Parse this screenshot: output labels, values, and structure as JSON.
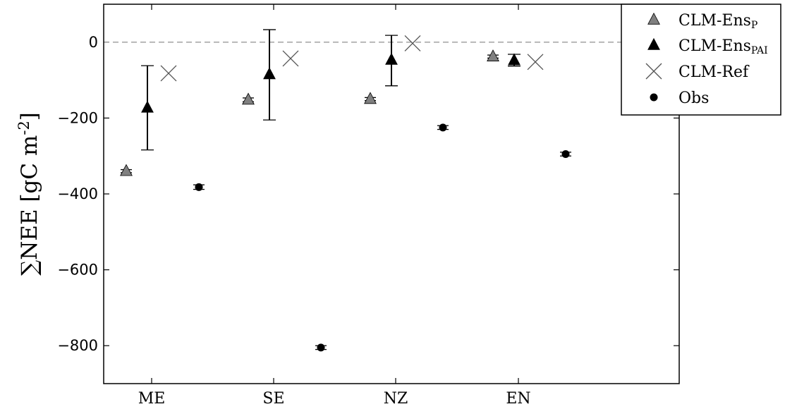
{
  "chart_data": {
    "type": "scatter",
    "categories": [
      "ME",
      "SE",
      "NZ",
      "EN"
    ],
    "ylabel": {
      "prefix": "∑NEE [gC m",
      "sup": "-2",
      "suffix": "]"
    },
    "ylim": [
      -900,
      100
    ],
    "yticks": [
      0,
      -200,
      -400,
      -600,
      -800
    ],
    "ytick_labels": [
      "0",
      "−200",
      "−400",
      "−600",
      "−800"
    ],
    "reference_line": {
      "y": 0,
      "style": "dashed",
      "color": "#999999"
    },
    "grid": false,
    "legend_position": "outside-top-right",
    "series": [
      {
        "key": "ens_p",
        "legend": {
          "base": "CLM-Ens",
          "sub": "P"
        },
        "marker": "triangle",
        "color": "#808080",
        "values": [
          -340,
          -152,
          -150,
          -38
        ],
        "err": [
          4,
          5,
          4,
          4
        ]
      },
      {
        "key": "ens_pai",
        "legend": {
          "base": "CLM-Ens",
          "sub": "PAI"
        },
        "marker": "triangle",
        "color": "#000000",
        "values": [
          -173,
          -85,
          -47,
          -48
        ],
        "err_low": [
          -284,
          -205,
          -115,
          -63
        ],
        "err_high": [
          -62,
          33,
          18,
          -32
        ]
      },
      {
        "key": "ref",
        "legend": {
          "base": "CLM-Ref",
          "sub": ""
        },
        "marker": "x",
        "color": "#555555",
        "values": [
          -82,
          -43,
          -3,
          -52
        ]
      },
      {
        "key": "obs",
        "legend": {
          "base": "Obs",
          "sub": ""
        },
        "marker": "circle",
        "color": "#000000",
        "values": [
          -382,
          -805,
          -225,
          -295
        ],
        "err": [
          6,
          5,
          5,
          5
        ]
      }
    ]
  }
}
